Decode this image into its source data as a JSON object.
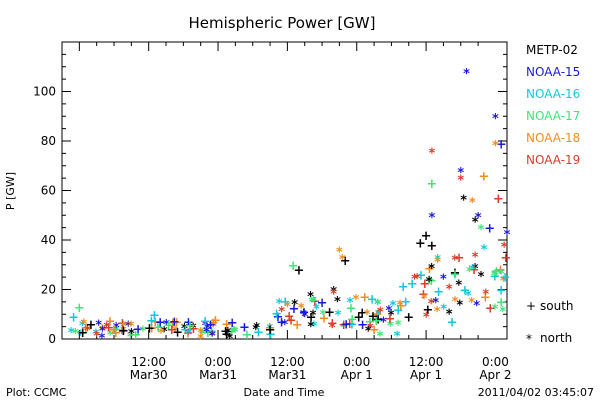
{
  "chart_data": {
    "type": "scatter",
    "title": "Hemispheric Power [GW]",
    "xlabel": "Date and Time",
    "ylabel": "P [GW]",
    "ylim": [
      0,
      120
    ],
    "y_ticks": [
      0,
      20,
      40,
      60,
      80,
      100
    ],
    "xlim": [
      "2011-03-29 21:00",
      "2011-04-02 02:00"
    ],
    "x_ticks": [
      {
        "t": "2011-03-30 12:00",
        "line1": "12:00",
        "line2": "Mar30"
      },
      {
        "t": "2011-03-31 00:00",
        "line1": "0:00",
        "line2": "Mar31"
      },
      {
        "t": "2011-03-31 12:00",
        "line1": "12:00",
        "line2": "Mar31"
      },
      {
        "t": "2011-04-01 00:00",
        "line1": "0:00",
        "line2": "Apr 1"
      },
      {
        "t": "2011-04-01 12:00",
        "line1": "12:00",
        "line2": "Apr 1"
      },
      {
        "t": "2011-04-02 00:00",
        "line1": "0:00",
        "line2": "Apr 2"
      }
    ],
    "grid": false,
    "legend_position": "right",
    "marker_legend": {
      "south": "south",
      "north": "north"
    },
    "series": [
      {
        "name": "METP-02",
        "color": "#000000",
        "points": [
          {
            "t": "2011-03-30 02:00",
            "y": 6,
            "m": "+"
          },
          {
            "t": "2011-03-30 09:00",
            "y": 4,
            "m": "*"
          },
          {
            "t": "2011-03-30 17:00",
            "y": 3,
            "m": "+"
          },
          {
            "t": "2011-03-31 02:00",
            "y": 2,
            "m": "*"
          },
          {
            "t": "2011-03-31 09:00",
            "y": 4,
            "m": "+"
          },
          {
            "t": "2011-03-31 14:00",
            "y": 28,
            "m": "+"
          },
          {
            "t": "2011-03-31 16:00",
            "y": 19,
            "m": "*"
          },
          {
            "t": "2011-03-31 20:00",
            "y": 21,
            "m": "*"
          },
          {
            "t": "2011-03-31 22:00",
            "y": 32,
            "m": "+"
          },
          {
            "t": "2011-04-01 02:00",
            "y": 5,
            "m": "*"
          },
          {
            "t": "2011-04-01 09:00",
            "y": 9,
            "m": "+"
          },
          {
            "t": "2011-04-01 11:00",
            "y": 39,
            "m": "+"
          },
          {
            "t": "2011-04-01 12:00",
            "y": 42,
            "m": "+"
          },
          {
            "t": "2011-04-01 13:00",
            "y": 38,
            "m": "+"
          },
          {
            "t": "2011-04-01 12:30",
            "y": 25,
            "m": "*"
          },
          {
            "t": "2011-04-01 16:00",
            "y": 12,
            "m": "*"
          },
          {
            "t": "2011-04-01 18:30",
            "y": 58,
            "m": "*"
          },
          {
            "t": "2011-04-01 20:30",
            "y": 49,
            "m": "*"
          },
          {
            "t": "2011-04-01 21:30",
            "y": 27,
            "m": "*"
          }
        ]
      },
      {
        "name": "NOAA-15",
        "color": "#1a1adc",
        "points": [
          {
            "t": "2011-03-30 04:00",
            "y": 5,
            "m": "*"
          },
          {
            "t": "2011-03-30 14:00",
            "y": 7,
            "m": "+"
          },
          {
            "t": "2011-03-30 23:00",
            "y": 3,
            "m": "*"
          },
          {
            "t": "2011-03-31 11:00",
            "y": 7,
            "m": "+"
          },
          {
            "t": "2011-03-31 15:00",
            "y": 11,
            "m": "*"
          },
          {
            "t": "2011-03-31 18:00",
            "y": 15,
            "m": "+"
          },
          {
            "t": "2011-04-01 01:00",
            "y": 6,
            "m": "+"
          },
          {
            "t": "2011-04-01 13:00",
            "y": 51,
            "m": "*"
          },
          {
            "t": "2011-04-01 15:00",
            "y": 26,
            "m": "*"
          },
          {
            "t": "2011-04-01 18:00",
            "y": 69,
            "m": "*"
          },
          {
            "t": "2011-04-01 19:00",
            "y": 109,
            "m": "*"
          },
          {
            "t": "2011-04-01 21:00",
            "y": 51,
            "m": "*"
          },
          {
            "t": "2011-04-02 00:00",
            "y": 91,
            "m": "*"
          },
          {
            "t": "2011-04-02 01:00",
            "y": 79,
            "m": "+"
          },
          {
            "t": "2011-04-02 02:00",
            "y": 44,
            "m": "*"
          },
          {
            "t": "2011-04-01 23:00",
            "y": 45,
            "m": "+"
          }
        ]
      },
      {
        "name": "NOAA-16",
        "color": "#11c8dc",
        "points": [
          {
            "t": "2011-03-29 23:00",
            "y": 9,
            "m": "+"
          },
          {
            "t": "2011-03-30 13:00",
            "y": 10,
            "m": "+"
          },
          {
            "t": "2011-03-30 19:00",
            "y": 4,
            "m": "*"
          },
          {
            "t": "2011-03-31 07:00",
            "y": 3,
            "m": "+"
          },
          {
            "t": "2011-03-31 17:00",
            "y": 14,
            "m": "*"
          },
          {
            "t": "2011-04-01 07:00",
            "y": 3,
            "m": "*"
          },
          {
            "t": "2011-04-01 14:00",
            "y": 34,
            "m": "*"
          },
          {
            "t": "2011-04-01 16:30",
            "y": 7,
            "m": "+"
          },
          {
            "t": "2011-04-01 20:00",
            "y": 30,
            "m": "*"
          },
          {
            "t": "2011-04-02 01:00",
            "y": 20,
            "m": "+"
          },
          {
            "t": "2011-04-01 22:00",
            "y": 38,
            "m": "*"
          }
        ]
      },
      {
        "name": "NOAA-17",
        "color": "#3ce678",
        "points": [
          {
            "t": "2011-03-30 00:00",
            "y": 13,
            "m": "+"
          },
          {
            "t": "2011-03-30 11:00",
            "y": 5,
            "m": "*"
          },
          {
            "t": "2011-03-31 05:00",
            "y": 2,
            "m": "+"
          },
          {
            "t": "2011-03-31 13:00",
            "y": 30,
            "m": "+"
          },
          {
            "t": "2011-03-31 16:30",
            "y": 17,
            "m": "*"
          },
          {
            "t": "2011-04-01 04:00",
            "y": 3,
            "m": "*"
          },
          {
            "t": "2011-04-01 13:00",
            "y": 63,
            "m": "+"
          },
          {
            "t": "2011-04-01 14:00",
            "y": 33,
            "m": "*"
          },
          {
            "t": "2011-04-01 19:30",
            "y": 29,
            "m": "*"
          },
          {
            "t": "2011-04-01 21:30",
            "y": 46,
            "m": "*"
          },
          {
            "t": "2011-04-02 01:00",
            "y": 28,
            "m": "*"
          }
        ]
      },
      {
        "name": "NOAA-18",
        "color": "#f08c1e",
        "points": [
          {
            "t": "2011-03-30 06:00",
            "y": 4,
            "m": "+"
          },
          {
            "t": "2011-03-30 21:00",
            "y": 2,
            "m": "*"
          },
          {
            "t": "2011-03-31 12:00",
            "y": 15,
            "m": "*"
          },
          {
            "t": "2011-03-31 21:00",
            "y": 37,
            "m": "*"
          },
          {
            "t": "2011-03-31 21:30",
            "y": 34,
            "m": "*"
          },
          {
            "t": "2011-04-01 03:00",
            "y": 4,
            "m": "+"
          },
          {
            "t": "2011-04-01 14:00",
            "y": 33,
            "m": "*"
          },
          {
            "t": "2011-04-01 20:00",
            "y": 57,
            "m": "*"
          },
          {
            "t": "2011-04-01 22:00",
            "y": 66,
            "m": "+"
          },
          {
            "t": "2011-04-02 00:00",
            "y": 80,
            "m": "*"
          },
          {
            "t": "2011-04-01 17:00",
            "y": 17,
            "m": "*"
          }
        ]
      },
      {
        "name": "NOAA-19",
        "color": "#dc3c28",
        "points": [
          {
            "t": "2011-03-30 03:00",
            "y": 3,
            "m": "*"
          },
          {
            "t": "2011-03-30 16:00",
            "y": 4,
            "m": "+"
          },
          {
            "t": "2011-03-31 11:00",
            "y": 13,
            "m": "*"
          },
          {
            "t": "2011-03-31 20:00",
            "y": 20,
            "m": "*"
          },
          {
            "t": "2011-04-01 10:00",
            "y": 26,
            "m": "*"
          },
          {
            "t": "2011-04-01 13:00",
            "y": 77,
            "m": "*"
          },
          {
            "t": "2011-04-01 18:00",
            "y": 66,
            "m": "*"
          },
          {
            "t": "2011-04-01 20:30",
            "y": 35,
            "m": "*"
          },
          {
            "t": "2011-04-02 00:30",
            "y": 57,
            "m": "+"
          },
          {
            "t": "2011-04-02 01:30",
            "y": 39,
            "m": "*"
          },
          {
            "t": "2011-04-01 16:00",
            "y": 22,
            "m": "*"
          }
        ]
      }
    ],
    "background_clusters": [
      {
        "from": "2011-03-29 21:00",
        "to": "2011-03-31 10:00",
        "center": "2011-03-30 05:00",
        "y_mean": 5,
        "y_spread": 3,
        "count": 80,
        "colors": [
          "#000000",
          "#1a1adc",
          "#11c8dc",
          "#3ce678",
          "#f08c1e",
          "#dc3c28"
        ]
      },
      {
        "from": "2011-03-31 10:00",
        "to": "2011-04-01 08:00",
        "center": "2011-03-31 19:00",
        "y_mean": 12,
        "y_spread": 6,
        "count": 60,
        "colors": [
          "#000000",
          "#1a1adc",
          "#11c8dc",
          "#3ce678",
          "#f08c1e",
          "#dc3c28"
        ]
      },
      {
        "from": "2011-04-01 08:00",
        "to": "2011-04-02 02:00",
        "center": "2011-04-01 17:00",
        "y_mean": 22,
        "y_spread": 12,
        "count": 45,
        "colors": [
          "#000000",
          "#1a1adc",
          "#11c8dc",
          "#3ce678",
          "#f08c1e",
          "#dc3c28"
        ]
      }
    ]
  },
  "footer": {
    "left": "Plot: CCMC",
    "right": "2011/04/02 03:45:07"
  }
}
